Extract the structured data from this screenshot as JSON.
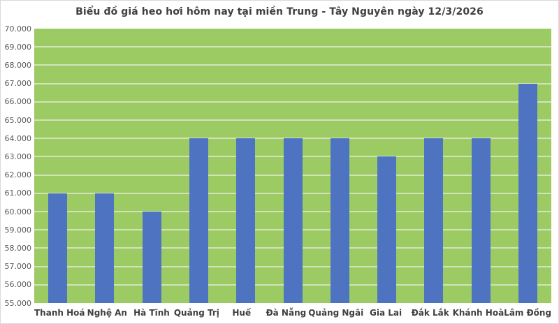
{
  "chart_data": {
    "type": "bar",
    "title": "Biểu đồ giá heo hơi hôm nay tại miền Trung - Tây Nguyên ngày 12/3/2026",
    "categories": [
      "Thanh Hoá",
      "Nghệ An",
      "Hà Tĩnh",
      "Quảng Trị",
      "Huế",
      "Đà Nẵng",
      "Quảng Ngãi",
      "Gia Lai",
      "Đắk Lắk",
      "Khánh Hoà",
      "Lâm Đồng"
    ],
    "values": [
      61000,
      61000,
      60000,
      64000,
      64000,
      64000,
      64000,
      63000,
      64000,
      64000,
      67000
    ],
    "y_tick_labels": [
      "70.000",
      "69.000",
      "68.000",
      "67.000",
      "66.000",
      "65.000",
      "64.000",
      "63.000",
      "62.000",
      "61.000",
      "60.000",
      "59.000",
      "58.000",
      "57.000",
      "56.000",
      "55.000"
    ],
    "ylim": [
      55000,
      70000
    ],
    "y_step": 1000,
    "xlabel": "",
    "ylabel": "",
    "grid": true,
    "legend": "none",
    "colors": {
      "bar": "#4E73C0",
      "plot_background": "#9CCB63",
      "gridline": "#D2E3BC",
      "chart_background": "#FFFFFF",
      "border": "#D9D9D9",
      "title_text": "#404040",
      "axis_tick_text": "#595959",
      "category_text": "#404040"
    }
  }
}
